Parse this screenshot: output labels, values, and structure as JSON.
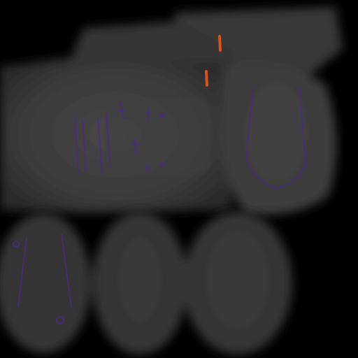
{
  "image": {
    "kind": "grayscale slice montage with colored contour overlays",
    "background_color": "#000000",
    "tissue_color": "#3a3a3a",
    "contour_color": "#4b2a84",
    "marker_color": "#e0501a",
    "contour_count": 4,
    "marker_count": 2,
    "visible_text": ""
  }
}
